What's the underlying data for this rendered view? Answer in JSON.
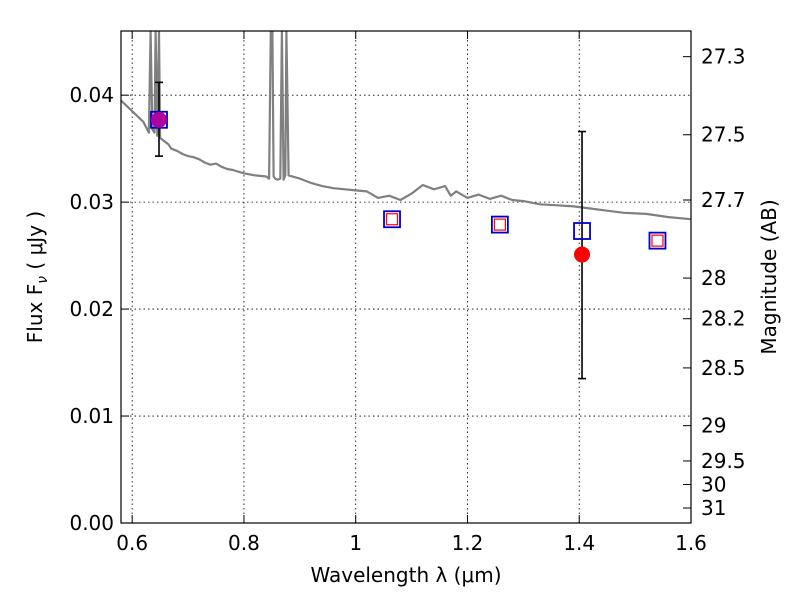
{
  "chart_data": {
    "type": "scatter",
    "xlabel": "Wavelength  λ (μm)",
    "ylabel": "Flux  F",
    "ylabel_sub": "ν",
    "ylabel_units": "  ( μJy )",
    "y2label": "Magnitude (AB)",
    "xlim": [
      0.58,
      1.6
    ],
    "ylim": [
      0.0,
      0.046
    ],
    "grid": true,
    "x_ticks": [
      0.6,
      0.8,
      1.0,
      1.2,
      1.4,
      1.6
    ],
    "x_tick_labels": [
      "0.6",
      "0.8",
      "1",
      "1.2",
      "1.4",
      "1.6"
    ],
    "y_ticks": [
      0.0,
      0.01,
      0.02,
      0.03,
      0.04
    ],
    "y_tick_labels": [
      "0.00",
      "0.01",
      "0.02",
      "0.03",
      "0.04"
    ],
    "mag_ticks": [
      {
        "label": "27.3",
        "flux": 0.0436
      },
      {
        "label": "27.5",
        "flux": 0.0363
      },
      {
        "label": "27.7",
        "flux": 0.0302
      },
      {
        "label": "28",
        "flux": 0.0229
      },
      {
        "label": "28.2",
        "flux": 0.0191
      },
      {
        "label": "28.5",
        "flux": 0.0145
      },
      {
        "label": "29",
        "flux": 0.0091
      },
      {
        "label": "29.5",
        "flux": 0.0058
      },
      {
        "label": "30",
        "flux": 0.0036
      },
      {
        "label": "31",
        "flux": 0.0014
      }
    ],
    "series": [
      {
        "kind": "line",
        "color": "#808080",
        "x": [
          0.58,
          0.6,
          0.62,
          0.625,
          0.63,
          0.633,
          0.636,
          0.64,
          0.642,
          0.645,
          0.648,
          0.65,
          0.655,
          0.66,
          0.665,
          0.67,
          0.68,
          0.69,
          0.7,
          0.71,
          0.72,
          0.73,
          0.74,
          0.75,
          0.76,
          0.77,
          0.78,
          0.8,
          0.82,
          0.84,
          0.845,
          0.848,
          0.851,
          0.853,
          0.856,
          0.86,
          0.865,
          0.868,
          0.871,
          0.874,
          0.876,
          0.88,
          0.9,
          0.92,
          0.94,
          0.96,
          1.0,
          1.02,
          1.04,
          1.06,
          1.08,
          1.1,
          1.12,
          1.14,
          1.16,
          1.17,
          1.18,
          1.2,
          1.22,
          1.24,
          1.26,
          1.28,
          1.3,
          1.33,
          1.36,
          1.39,
          1.42,
          1.45,
          1.48,
          1.52,
          1.56,
          1.6
        ],
        "y": [
          0.0395,
          0.0385,
          0.0375,
          0.037,
          0.0365,
          0.046,
          0.0368,
          0.0365,
          0.046,
          0.0362,
          0.046,
          0.036,
          0.0358,
          0.0356,
          0.0354,
          0.035,
          0.0348,
          0.0345,
          0.0343,
          0.0342,
          0.034,
          0.0337,
          0.0335,
          0.0336,
          0.0333,
          0.0331,
          0.033,
          0.0327,
          0.0325,
          0.0324,
          0.0322,
          0.046,
          0.046,
          0.0324,
          0.0322,
          0.0321,
          0.0322,
          0.046,
          0.0321,
          0.0325,
          0.046,
          0.0325,
          0.0322,
          0.0318,
          0.0315,
          0.0313,
          0.0311,
          0.031,
          0.0304,
          0.0306,
          0.0302,
          0.0308,
          0.0316,
          0.0312,
          0.0315,
          0.0306,
          0.031,
          0.0304,
          0.0307,
          0.0303,
          0.0306,
          0.0302,
          0.0301,
          0.0298,
          0.0297,
          0.0296,
          0.0294,
          0.0292,
          0.029,
          0.0289,
          0.0286,
          0.0284
        ]
      },
      {
        "kind": "errorbar",
        "color": "#000000",
        "x": [
          0.648,
          1.405
        ],
        "y": [
          0.0377,
          0.0251
        ],
        "yerr_low": [
          0.0034,
          0.0116
        ],
        "yerr_high": [
          0.0035,
          0.0115
        ]
      },
      {
        "kind": "marker",
        "marker": "square-open",
        "color": "#0000cc",
        "x": [
          0.648,
          1.065,
          1.258,
          1.405,
          1.54
        ],
        "y": [
          0.0377,
          0.0284,
          0.0279,
          0.0273,
          0.0264
        ]
      },
      {
        "kind": "marker",
        "marker": "square-open-small",
        "color": "#ff0000",
        "x": [
          1.065,
          1.258,
          1.54
        ],
        "y": [
          0.0284,
          0.0279,
          0.0264
        ]
      },
      {
        "kind": "marker",
        "marker": "circle",
        "color": "#ff0000",
        "x": [
          1.405
        ],
        "y": [
          0.0251
        ]
      },
      {
        "kind": "marker",
        "marker": "circle",
        "color": "#b000a0",
        "x": [
          0.648
        ],
        "y": [
          0.0377
        ]
      }
    ]
  }
}
